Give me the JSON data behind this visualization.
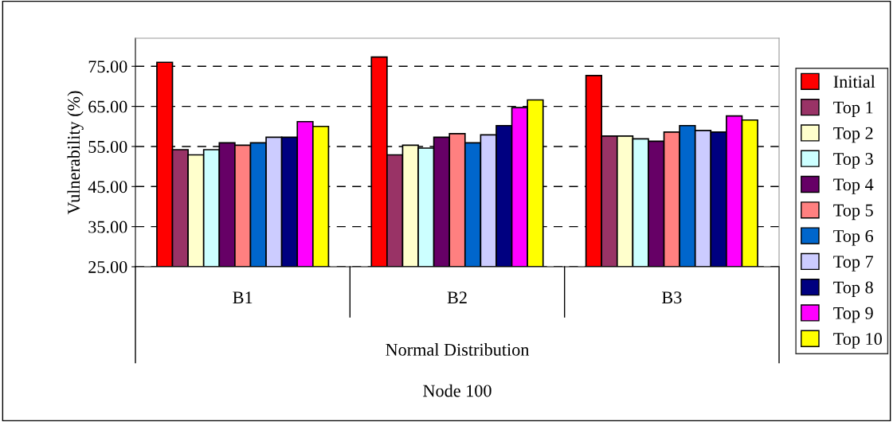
{
  "chart_data": {
    "type": "bar",
    "ylabel": "Vulnerability (%)",
    "annotations": [
      "Normal Distribution",
      "Node 100"
    ],
    "categories": [
      "B1",
      "B2",
      "B3"
    ],
    "ylim": [
      25,
      82
    ],
    "yticks": [
      {
        "value": 25,
        "label": "25.00"
      },
      {
        "value": 35,
        "label": "35.00"
      },
      {
        "value": 45,
        "label": "45.00"
      },
      {
        "value": 55,
        "label": "55.00"
      },
      {
        "value": 65,
        "label": "65.00"
      },
      {
        "value": 75,
        "label": "75.00"
      }
    ],
    "grid": "y",
    "legend": "right",
    "series": [
      {
        "name": "Initial",
        "color": "#ff0000",
        "values": [
          76.0,
          77.3,
          72.7
        ]
      },
      {
        "name": "Top 1",
        "color": "#993366",
        "values": [
          54.2,
          52.9,
          57.6
        ]
      },
      {
        "name": "Top 2",
        "color": "#ffffcc",
        "values": [
          52.9,
          55.3,
          57.6
        ]
      },
      {
        "name": "Top 3",
        "color": "#ccffff",
        "values": [
          54.2,
          54.6,
          56.9
        ]
      },
      {
        "name": "Top 4",
        "color": "#660066",
        "values": [
          55.9,
          57.3,
          56.3
        ]
      },
      {
        "name": "Top 5",
        "color": "#ff8080",
        "values": [
          55.3,
          58.2,
          58.6
        ]
      },
      {
        "name": "Top 6",
        "color": "#0066cc",
        "values": [
          55.9,
          55.9,
          60.2
        ]
      },
      {
        "name": "Top 7",
        "color": "#ccccff",
        "values": [
          57.3,
          57.9,
          59.0
        ]
      },
      {
        "name": "Top 8",
        "color": "#000080",
        "values": [
          57.3,
          60.2,
          58.6
        ]
      },
      {
        "name": "Top 9",
        "color": "#ff00ff",
        "values": [
          61.2,
          64.7,
          62.6
        ]
      },
      {
        "name": "Top 10",
        "color": "#ffff00",
        "values": [
          60.0,
          66.6,
          61.6
        ]
      }
    ]
  }
}
